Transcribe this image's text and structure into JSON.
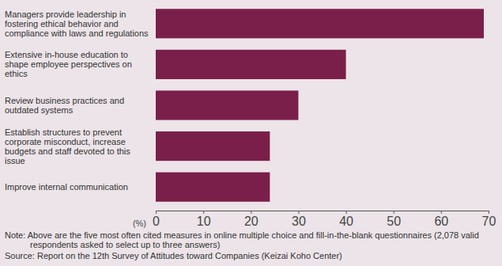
{
  "chart_data": {
    "type": "bar",
    "orientation": "horizontal",
    "categories": [
      "Managers provide leadership in fostering ethical behavior and compliance with laws and regulations",
      "Extensive in-house education to shape employee perspectives on ethics",
      "Review business practices and outdated systems",
      "Establish structures to prevent corporate misconduct, increase budgets and staff devoted to this issue",
      "Improve internal communication"
    ],
    "values": [
      69,
      40,
      30,
      24,
      24
    ],
    "color": "#7a1f4a",
    "xlim": [
      0,
      70
    ],
    "xticks": [
      0,
      10,
      20,
      30,
      40,
      50,
      60,
      70
    ],
    "xlabel": "(%)",
    "grid": false,
    "note": "Note: Above are the five most often cited measures in online multiple choice and fill-in-the-blank questionnaires (2,078 valid respondents asked to select up to three answers)",
    "source": "Source: Report on the 12th Survey of Attitudes toward Companies (Keizai Koho Center)"
  }
}
